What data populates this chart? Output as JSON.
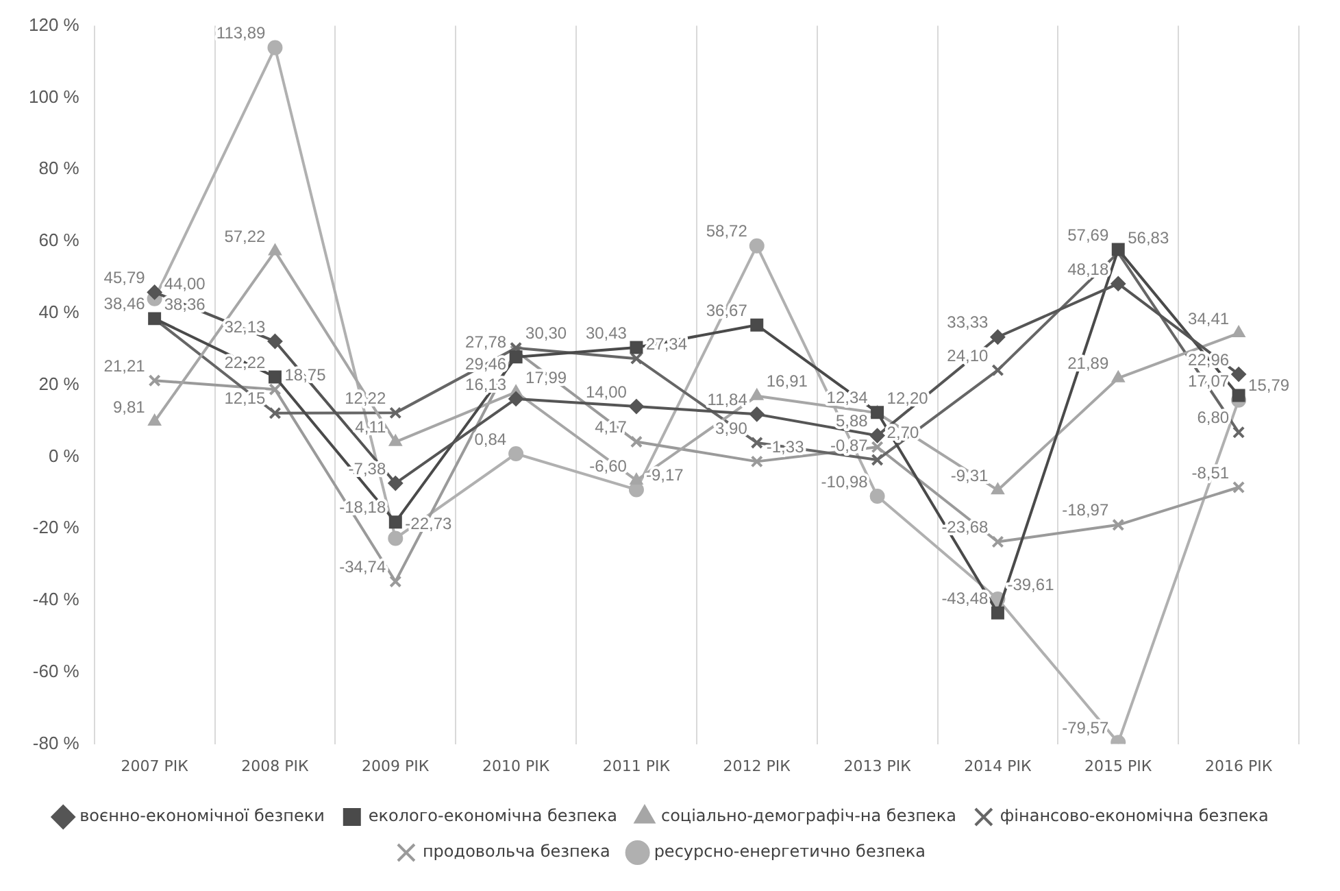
{
  "chart_data": {
    "type": "line",
    "categories": [
      "2007 РІК",
      "2008 РІК",
      "2009 РІК",
      "2010 РІК",
      "2011 РІК",
      "2012 РІК",
      "2013 РІК",
      "2014 РІК",
      "2015 РІК",
      "2016 РІК"
    ],
    "ylim": [
      -80,
      120
    ],
    "yticks": [
      {
        "value": -80,
        "label": "-80 %"
      },
      {
        "value": -60,
        "label": "-60 %"
      },
      {
        "value": -40,
        "label": "-40 %"
      },
      {
        "value": -20,
        "label": "-20 %"
      },
      {
        "value": 0,
        "label": "0 %"
      },
      {
        "value": 20,
        "label": "20 %"
      },
      {
        "value": 40,
        "label": "40 %"
      },
      {
        "value": 60,
        "label": "60 %"
      },
      {
        "value": 80,
        "label": "80 %"
      },
      {
        "value": 100,
        "label": "100 %"
      },
      {
        "value": 120,
        "label": "120 %"
      }
    ],
    "grid": "x",
    "legend": "bottom",
    "series": [
      {
        "name": "воєнно-економічної безпеки",
        "color": "#555555",
        "marker": "diamond",
        "values": [
          45.79,
          32.13,
          -7.38,
          16.13,
          14.0,
          11.84,
          5.88,
          33.33,
          48.18,
          22.96
        ],
        "value_labels": [
          "45,79",
          "32,13",
          "-7,38",
          "16,13",
          "14,00",
          "11,84",
          "5,88",
          "33,33",
          "48,18",
          "22,96"
        ]
      },
      {
        "name": "еколого-економічна безпека",
        "color": "#4a4a4a",
        "marker": "square",
        "values": [
          38.46,
          22.22,
          -18.18,
          27.78,
          30.43,
          36.67,
          12.34,
          -43.48,
          57.69,
          17.07
        ],
        "value_labels": [
          "38,46",
          "22,22",
          "-18,18",
          "27,78",
          "30,43",
          "36,67",
          "12,34",
          "-43,48",
          "57,69",
          "17,07"
        ]
      },
      {
        "name": "соціально-демографіч-на безпека",
        "color": "#a6a6a6",
        "marker": "triangle",
        "values": [
          9.81,
          57.22,
          4.11,
          17.99,
          -6.6,
          16.91,
          12.2,
          -9.31,
          21.89,
          34.41
        ],
        "value_labels": [
          "9,81",
          "57,22",
          "4,11",
          "17,99",
          "-6,60",
          "16,91",
          "12,20",
          "-9,31",
          "21,89",
          "34,41"
        ]
      },
      {
        "name": "фінансово-економічна безпека",
        "color": "#666666",
        "marker": "cross",
        "values": [
          38.36,
          12.15,
          12.22,
          30.3,
          27.34,
          3.9,
          -0.87,
          24.1,
          56.83,
          6.8
        ],
        "value_labels": [
          "38,36",
          "12,15",
          "12,22",
          "30,30",
          "27,34",
          "3,90",
          "-0,87",
          "24,10",
          "56,83",
          "6,80"
        ]
      },
      {
        "name": "продовольча безпека",
        "color": "#9a9a9a",
        "marker": "cross",
        "values": [
          21.21,
          18.75,
          -34.74,
          29.46,
          4.17,
          -1.33,
          2.7,
          -23.68,
          -18.97,
          -8.51
        ],
        "value_labels": [
          "21,21",
          "18,75",
          "-34,74",
          "29,46",
          "4,17",
          "-1,33",
          "2,70",
          "-23,68",
          "-18,97",
          "-8,51"
        ]
      },
      {
        "name": "ресурсно-енергетично безпека",
        "color": "#b0b0b0",
        "marker": "circle",
        "values": [
          44.0,
          113.89,
          -22.73,
          0.84,
          -9.17,
          58.72,
          -10.98,
          -39.61,
          -79.57,
          15.79
        ],
        "value_labels": [
          "44,00",
          "113,89",
          "-22,73",
          "0,84",
          "-9,17",
          "58,72",
          "-10,98",
          "-39,61",
          "-79,57",
          "15,79"
        ]
      }
    ]
  }
}
